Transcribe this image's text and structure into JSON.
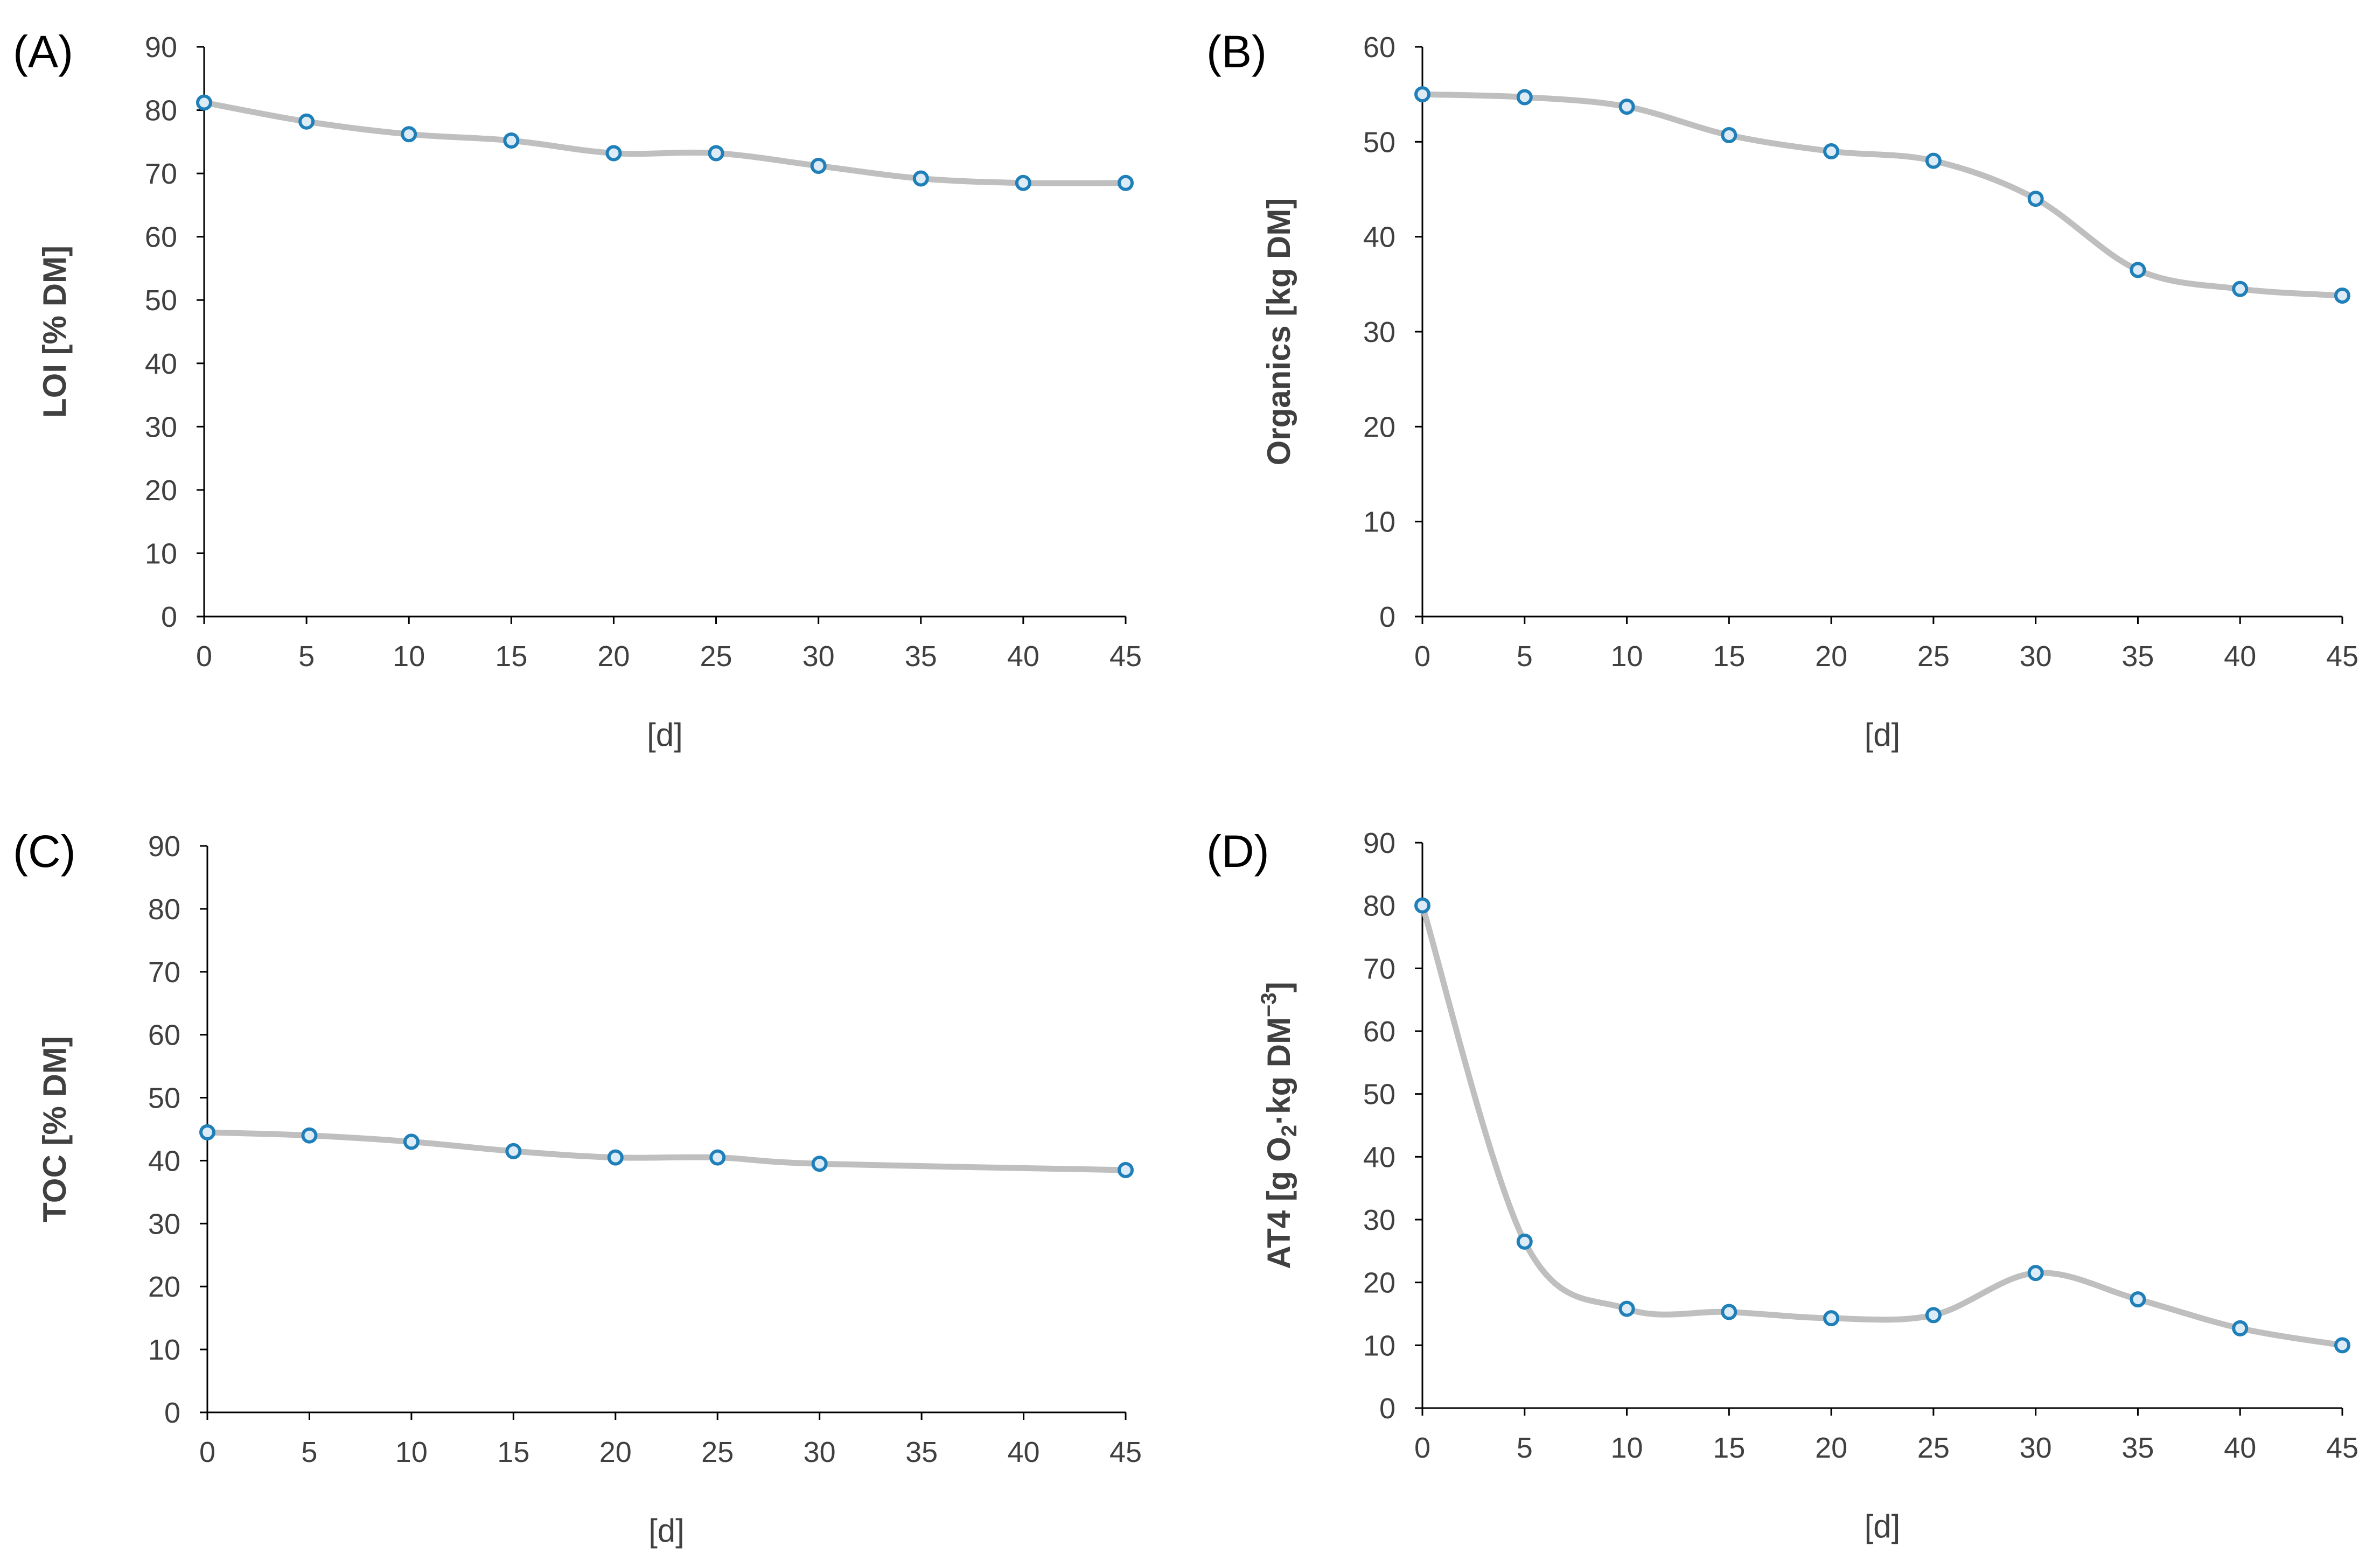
{
  "colors": {
    "curve": "#BFBFBF",
    "marker_stroke": "#1F7FB8",
    "marker_fill": "#DDEBF7",
    "axis": "#000000",
    "text": "#404040"
  },
  "chart_data": [
    {
      "id": "A",
      "type": "line",
      "panel_label": "(A)",
      "title": "",
      "xlabel": "[d]",
      "ylabel": "LOI [% DM]",
      "xlim": [
        0,
        45
      ],
      "ylim": [
        0,
        90
      ],
      "xticks": [
        0,
        5,
        10,
        15,
        20,
        25,
        30,
        35,
        40,
        45
      ],
      "yticks": [
        0,
        10,
        20,
        30,
        40,
        50,
        60,
        70,
        80,
        90
      ],
      "smooth": true,
      "legend": "none",
      "grid": false,
      "x": [
        0,
        5,
        10,
        15,
        20,
        25,
        30,
        35,
        40,
        45
      ],
      "y": [
        81.2,
        78.2,
        76.2,
        75.2,
        73.2,
        73.2,
        71.2,
        69.2,
        68.5,
        68.5
      ]
    },
    {
      "id": "B",
      "type": "line",
      "panel_label": "(B)",
      "title": "",
      "xlabel": "[d]",
      "ylabel": "Organics [kg DM]",
      "xlim": [
        0,
        45
      ],
      "ylim": [
        0,
        60
      ],
      "xticks": [
        0,
        5,
        10,
        15,
        20,
        25,
        30,
        35,
        40,
        45
      ],
      "yticks": [
        0,
        10,
        20,
        30,
        40,
        50,
        60
      ],
      "smooth": true,
      "legend": "none",
      "grid": false,
      "x": [
        0,
        5,
        10,
        15,
        20,
        25,
        30,
        35,
        40,
        45
      ],
      "y": [
        55.0,
        54.7,
        53.7,
        50.7,
        49.0,
        48.0,
        44.0,
        36.5,
        34.5,
        33.8
      ]
    },
    {
      "id": "C",
      "type": "line",
      "panel_label": "(C)",
      "title": "",
      "xlabel": "[d]",
      "ylabel": "TOC [% DM]",
      "xlim": [
        0,
        45
      ],
      "ylim": [
        0,
        90
      ],
      "xticks": [
        0,
        5,
        10,
        15,
        20,
        25,
        30,
        35,
        40,
        45
      ],
      "yticks": [
        0,
        10,
        20,
        30,
        40,
        50,
        60,
        70,
        80,
        90
      ],
      "smooth": true,
      "legend": "none",
      "grid": false,
      "x": [
        0,
        5,
        10,
        15,
        20,
        25,
        30,
        45
      ],
      "y": [
        44.5,
        44.0,
        43.0,
        41.5,
        40.5,
        40.5,
        39.5,
        38.5
      ]
    },
    {
      "id": "D",
      "type": "line",
      "panel_label": "(D)",
      "title": "",
      "xlabel": "[d]",
      "ylabel_parts": [
        "AT4 [g O",
        "2",
        "·kg DM",
        "−3",
        "]"
      ],
      "xlim": [
        0,
        45
      ],
      "ylim": [
        0,
        90
      ],
      "xticks": [
        0,
        5,
        10,
        15,
        20,
        25,
        30,
        35,
        40,
        45
      ],
      "yticks": [
        0,
        10,
        20,
        30,
        40,
        50,
        60,
        70,
        80,
        90
      ],
      "smooth": true,
      "legend": "none",
      "grid": false,
      "x": [
        0,
        5,
        10,
        15,
        20,
        25,
        30,
        35,
        40,
        45
      ],
      "y": [
        80.0,
        26.5,
        15.8,
        15.3,
        14.3,
        14.8,
        21.5,
        17.3,
        12.7,
        10.0
      ]
    }
  ]
}
